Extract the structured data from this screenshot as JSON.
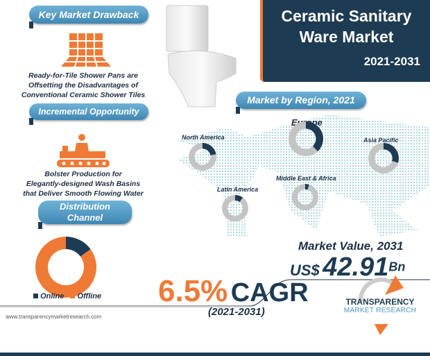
{
  "header": {
    "title_line1": "Ceramic Sanitary",
    "title_line2": "Ware Market",
    "years": "2021-2031"
  },
  "drawback": {
    "label": "Key Market Drawback",
    "icon": "tiles-icon",
    "lines": [
      "Ready-for-Tile Shower Pans are",
      "Offsetting the Disadvantages of",
      "Conventional Ceramic Shower Tiles"
    ]
  },
  "opportunity": {
    "label": "Incremental Opportunity",
    "icon": "production-worker-icon",
    "lines": [
      "Bolster Production for",
      "Elegantly-designed Wash Basins",
      "that Deliver Smooth Flowing Water"
    ]
  },
  "distribution": {
    "label_line1": "Distribution",
    "label_line2": "Channel",
    "legend": [
      "Online",
      "Offline"
    ]
  },
  "region": {
    "label": "Market by Region, 2021",
    "regions": [
      "North America",
      "Europe",
      "Asia Pacific",
      "Latin America",
      "Middle East & Africa"
    ]
  },
  "market_value": {
    "label": "Market Value, 2031",
    "currency": "US$",
    "value": "42.91",
    "unit": "Bn"
  },
  "cagr": {
    "value": "6.5%",
    "label": "CAGR",
    "period": "(2021-2031)"
  },
  "logo": {
    "line1": "TRANSPARENCY",
    "line2": "MARKET RESEARCH"
  },
  "footer": {
    "url": "www.transparencymarketresearch.com"
  },
  "colors": {
    "navy": "#1d3b52",
    "orange": "#ef7a36",
    "blue": "#4a94bf",
    "gray": "#c4c4c4"
  },
  "chart_data": [
    {
      "type": "pie",
      "donut": true,
      "categories": [
        "Online",
        "Offline"
      ],
      "values": [
        15,
        85
      ],
      "colors": [
        "#1d3b52",
        "#ef7a36"
      ],
      "legend": "bottom"
    },
    {
      "type": "pie",
      "donut": true,
      "note_values_estimated": true,
      "categories": [
        "North America",
        "Europe",
        "Asia Pacific",
        "Latin America",
        "Middle East & Africa"
      ],
      "values": [
        22,
        38,
        30,
        10,
        5
      ]
    }
  ]
}
